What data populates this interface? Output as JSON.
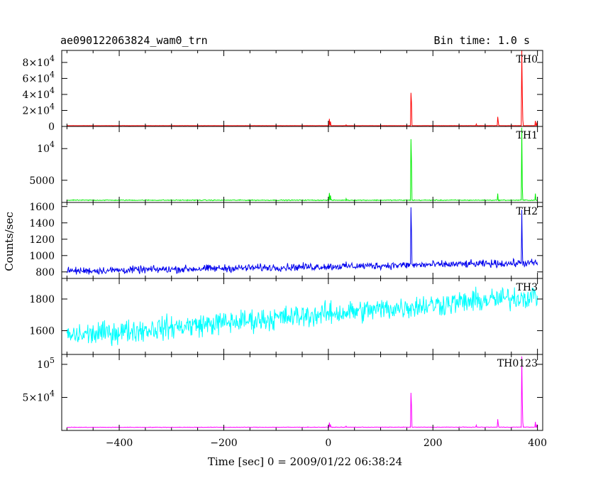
{
  "header": {
    "title": "ae090122063824_wam0_trn",
    "bin_time": "Bin time: 1.0 s"
  },
  "chart_data": {
    "type": "line",
    "xlabel": "Time [sec] 0 = 2009/01/22 06:38:24",
    "ylabel": "Counts/sec",
    "xlim": [
      -510,
      410
    ],
    "x_ticks": [
      -400,
      -200,
      0,
      200,
      400
    ],
    "x_tick_labels": [
      "−400",
      "−200",
      "0",
      "200",
      "400"
    ],
    "panels": [
      {
        "name": "TH0",
        "color": "#ff0000",
        "ylim": [
          0,
          95000
        ],
        "baseline": 1000,
        "noise": 60,
        "trend": 0,
        "y_ticks": [
          0,
          20000,
          40000,
          60000,
          80000
        ],
        "y_tick_labels": [
          {
            "text": "0",
            "exp": ""
          },
          {
            "text": "2×10",
            "exp": "4"
          },
          {
            "text": "4×10",
            "exp": "4"
          },
          {
            "text": "6×10",
            "exp": "4"
          },
          {
            "text": "8×10",
            "exp": "4"
          }
        ],
        "spikes": [
          [
            2,
            9500
          ],
          [
            4,
            6000
          ],
          [
            34,
            2000
          ],
          [
            158,
            42000
          ],
          [
            159,
            30000
          ],
          [
            283,
            3000
          ],
          [
            324,
            12000
          ],
          [
            325,
            6000
          ],
          [
            370,
            95000
          ],
          [
            371,
            40000
          ],
          [
            372,
            8000
          ],
          [
            396,
            7000
          ],
          [
            399,
            5000
          ]
        ]
      },
      {
        "name": "TH1",
        "color": "#00ee00",
        "ylim": [
          1500,
          13500
        ],
        "baseline": 1850,
        "noise": 45,
        "trend": 0,
        "y_ticks": [
          5000,
          10000
        ],
        "y_tick_labels": [
          {
            "text": "5000",
            "exp": ""
          },
          {
            "text": "10",
            "exp": "4"
          }
        ],
        "spikes": [
          [
            2,
            3000
          ],
          [
            4,
            2600
          ],
          [
            34,
            2100
          ],
          [
            158,
            11500
          ],
          [
            159,
            8000
          ],
          [
            324,
            2900
          ],
          [
            370,
            13300
          ],
          [
            371,
            4000
          ],
          [
            396,
            2900
          ]
        ]
      },
      {
        "name": "TH2",
        "color": "#0000ee",
        "ylim": [
          720,
          1650
        ],
        "baseline": 810,
        "noise": 28,
        "trend": 100,
        "y_ticks": [
          800,
          1000,
          1200,
          1400,
          1600
        ],
        "y_tick_labels": [
          {
            "text": "800",
            "exp": ""
          },
          {
            "text": "1000",
            "exp": ""
          },
          {
            "text": "1200",
            "exp": ""
          },
          {
            "text": "1400",
            "exp": ""
          },
          {
            "text": "1600",
            "exp": ""
          }
        ],
        "spikes": [
          [
            158,
            1590
          ],
          [
            159,
            1300
          ],
          [
            370,
            1560
          ],
          [
            371,
            1100
          ]
        ]
      },
      {
        "name": "TH3",
        "color": "#00ffff",
        "ylim": [
          1450,
          1930
        ],
        "baseline": 1565,
        "noise": 45,
        "trend": 255,
        "y_ticks": [
          1600,
          1800
        ],
        "y_tick_labels": [
          {
            "text": "1600",
            "exp": ""
          },
          {
            "text": "1800",
            "exp": ""
          }
        ],
        "spikes": []
      },
      {
        "name": "TH0123",
        "color": "#ff00ff",
        "ylim": [
          0,
          115000
        ],
        "baseline": 4700,
        "noise": 250,
        "trend": 300,
        "y_ticks": [
          50000,
          100000
        ],
        "y_tick_labels": [
          {
            "text": "5×10",
            "exp": "4"
          },
          {
            "text": "10",
            "exp": "5"
          }
        ],
        "spikes": [
          [
            2,
            12000
          ],
          [
            4,
            9000
          ],
          [
            34,
            6500
          ],
          [
            158,
            57000
          ],
          [
            159,
            38000
          ],
          [
            283,
            8000
          ],
          [
            324,
            17000
          ],
          [
            325,
            10000
          ],
          [
            370,
            112000
          ],
          [
            371,
            45000
          ],
          [
            372,
            12000
          ],
          [
            396,
            13000
          ],
          [
            399,
            9000
          ]
        ]
      }
    ]
  }
}
